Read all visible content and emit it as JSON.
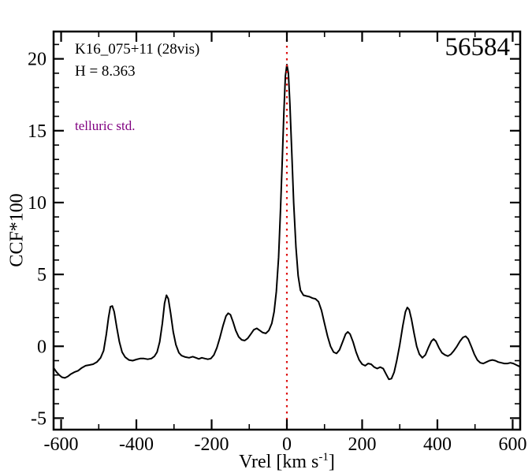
{
  "annotations": {
    "target_id": "K16_075+11 (28vis)",
    "h_mag": "H = 8.363",
    "telluric": "telluric std.",
    "mjd": "56584"
  },
  "colors": {
    "axis": "#000000",
    "line": "#000000",
    "ref_line": "#dd1111",
    "telluric_text": "#800080"
  },
  "chart_data": {
    "type": "line",
    "title": "",
    "xlabel": "Vrel [km s^-1]",
    "xlabel_main": "Vrel [km s",
    "xlabel_sup": "-1",
    "xlabel_close": "]",
    "ylabel": "CCF*100",
    "xlim": [
      -620,
      620
    ],
    "ylim": [
      -5.8,
      21.9
    ],
    "xticks": [
      -600,
      -400,
      -200,
      0,
      200,
      400,
      600
    ],
    "yticks": [
      -5,
      0,
      5,
      10,
      15,
      20
    ],
    "xtick_minor_step": 100,
    "ytick_minor_step": 1,
    "grid": false,
    "legend": false,
    "ref_line_x": 0,
    "series": [
      {
        "name": "ccf",
        "points": [
          [
            -620,
            -1.5
          ],
          [
            -612,
            -1.8
          ],
          [
            -605,
            -2.0
          ],
          [
            -598,
            -2.15
          ],
          [
            -590,
            -2.2
          ],
          [
            -582,
            -2.1
          ],
          [
            -575,
            -1.95
          ],
          [
            -565,
            -1.8
          ],
          [
            -555,
            -1.7
          ],
          [
            -545,
            -1.5
          ],
          [
            -535,
            -1.35
          ],
          [
            -525,
            -1.3
          ],
          [
            -515,
            -1.25
          ],
          [
            -505,
            -1.1
          ],
          [
            -495,
            -0.8
          ],
          [
            -487,
            -0.3
          ],
          [
            -480,
            0.8
          ],
          [
            -474,
            2.0
          ],
          [
            -469,
            2.75
          ],
          [
            -464,
            2.8
          ],
          [
            -459,
            2.4
          ],
          [
            -452,
            1.3
          ],
          [
            -445,
            0.3
          ],
          [
            -438,
            -0.4
          ],
          [
            -430,
            -0.75
          ],
          [
            -420,
            -0.95
          ],
          [
            -410,
            -1.0
          ],
          [
            -400,
            -0.92
          ],
          [
            -390,
            -0.85
          ],
          [
            -380,
            -0.85
          ],
          [
            -370,
            -0.9
          ],
          [
            -360,
            -0.85
          ],
          [
            -352,
            -0.7
          ],
          [
            -345,
            -0.4
          ],
          [
            -338,
            0.3
          ],
          [
            -331,
            1.6
          ],
          [
            -325,
            3.0
          ],
          [
            -320,
            3.55
          ],
          [
            -315,
            3.3
          ],
          [
            -309,
            2.3
          ],
          [
            -302,
            1.0
          ],
          [
            -295,
            0.1
          ],
          [
            -287,
            -0.45
          ],
          [
            -280,
            -0.65
          ],
          [
            -270,
            -0.75
          ],
          [
            -260,
            -0.8
          ],
          [
            -250,
            -0.72
          ],
          [
            -242,
            -0.8
          ],
          [
            -234,
            -0.88
          ],
          [
            -226,
            -0.8
          ],
          [
            -218,
            -0.85
          ],
          [
            -210,
            -0.9
          ],
          [
            -202,
            -0.85
          ],
          [
            -194,
            -0.6
          ],
          [
            -186,
            -0.1
          ],
          [
            -178,
            0.6
          ],
          [
            -170,
            1.4
          ],
          [
            -162,
            2.1
          ],
          [
            -156,
            2.3
          ],
          [
            -150,
            2.2
          ],
          [
            -143,
            1.7
          ],
          [
            -136,
            1.1
          ],
          [
            -128,
            0.65
          ],
          [
            -120,
            0.45
          ],
          [
            -112,
            0.4
          ],
          [
            -104,
            0.55
          ],
          [
            -96,
            0.85
          ],
          [
            -88,
            1.15
          ],
          [
            -80,
            1.25
          ],
          [
            -72,
            1.1
          ],
          [
            -64,
            0.95
          ],
          [
            -56,
            0.9
          ],
          [
            -48,
            1.1
          ],
          [
            -40,
            1.6
          ],
          [
            -34,
            2.4
          ],
          [
            -28,
            3.8
          ],
          [
            -22,
            6.2
          ],
          [
            -17,
            9.5
          ],
          [
            -12,
            13.2
          ],
          [
            -8,
            16.3
          ],
          [
            -4,
            18.8
          ],
          [
            0,
            19.6
          ],
          [
            4,
            19.0
          ],
          [
            8,
            16.9
          ],
          [
            13,
            13.5
          ],
          [
            18,
            10.0
          ],
          [
            24,
            6.9
          ],
          [
            30,
            4.9
          ],
          [
            36,
            3.9
          ],
          [
            44,
            3.55
          ],
          [
            52,
            3.5
          ],
          [
            60,
            3.45
          ],
          [
            68,
            3.35
          ],
          [
            76,
            3.3
          ],
          [
            84,
            3.1
          ],
          [
            92,
            2.5
          ],
          [
            100,
            1.6
          ],
          [
            108,
            0.7
          ],
          [
            116,
            0.0
          ],
          [
            124,
            -0.4
          ],
          [
            132,
            -0.5
          ],
          [
            140,
            -0.25
          ],
          [
            148,
            0.3
          ],
          [
            156,
            0.85
          ],
          [
            162,
            1.0
          ],
          [
            168,
            0.85
          ],
          [
            176,
            0.3
          ],
          [
            184,
            -0.4
          ],
          [
            192,
            -0.95
          ],
          [
            200,
            -1.25
          ],
          [
            208,
            -1.35
          ],
          [
            216,
            -1.2
          ],
          [
            224,
            -1.25
          ],
          [
            232,
            -1.45
          ],
          [
            240,
            -1.55
          ],
          [
            248,
            -1.45
          ],
          [
            256,
            -1.55
          ],
          [
            264,
            -1.95
          ],
          [
            271,
            -2.3
          ],
          [
            278,
            -2.25
          ],
          [
            285,
            -1.8
          ],
          [
            292,
            -1.0
          ],
          [
            300,
            0.1
          ],
          [
            308,
            1.4
          ],
          [
            315,
            2.4
          ],
          [
            320,
            2.7
          ],
          [
            325,
            2.55
          ],
          [
            331,
            1.9
          ],
          [
            338,
            0.9
          ],
          [
            345,
            0.0
          ],
          [
            352,
            -0.55
          ],
          [
            360,
            -0.8
          ],
          [
            368,
            -0.6
          ],
          [
            376,
            -0.1
          ],
          [
            384,
            0.35
          ],
          [
            390,
            0.5
          ],
          [
            396,
            0.35
          ],
          [
            404,
            -0.1
          ],
          [
            412,
            -0.45
          ],
          [
            420,
            -0.6
          ],
          [
            428,
            -0.68
          ],
          [
            436,
            -0.55
          ],
          [
            444,
            -0.3
          ],
          [
            452,
            0.0
          ],
          [
            460,
            0.35
          ],
          [
            468,
            0.62
          ],
          [
            475,
            0.7
          ],
          [
            482,
            0.5
          ],
          [
            490,
            0.0
          ],
          [
            498,
            -0.55
          ],
          [
            506,
            -0.95
          ],
          [
            514,
            -1.15
          ],
          [
            522,
            -1.2
          ],
          [
            530,
            -1.1
          ],
          [
            538,
            -1.0
          ],
          [
            546,
            -0.95
          ],
          [
            554,
            -1.0
          ],
          [
            562,
            -1.1
          ],
          [
            570,
            -1.15
          ],
          [
            578,
            -1.2
          ],
          [
            586,
            -1.2
          ],
          [
            594,
            -1.15
          ],
          [
            602,
            -1.2
          ],
          [
            610,
            -1.3
          ],
          [
            618,
            -1.4
          ]
        ]
      }
    ]
  }
}
